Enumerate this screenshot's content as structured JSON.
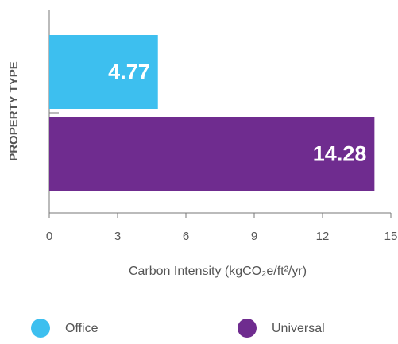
{
  "chart_data": {
    "type": "hbar",
    "categories": [
      "Office",
      "Universal"
    ],
    "values": [
      4.77,
      14.28
    ],
    "colors": [
      "#3dbfef",
      "#6f2c8f"
    ],
    "xlabel": "Carbon Intensity (kgCO₂e/ft²/yr)",
    "ylabel": "PROPERTY TYPE",
    "xlim": [
      0,
      15
    ],
    "xticks": [
      0,
      3,
      6,
      9,
      12,
      15
    ],
    "grid": false,
    "legend": "bottom"
  }
}
